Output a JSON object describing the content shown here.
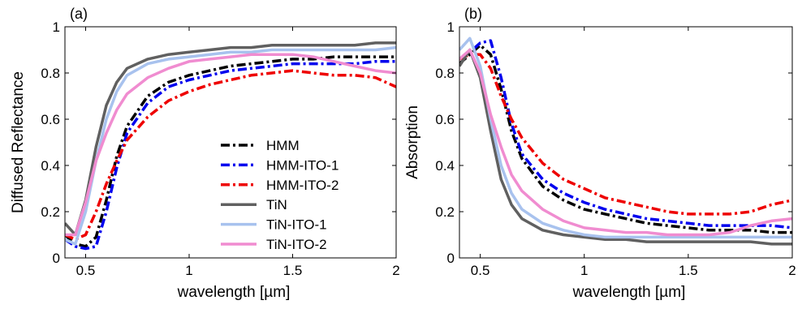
{
  "chart_data": [
    {
      "type": "line",
      "panel_label": "(a)",
      "xlabel": "wavelength [µm]",
      "ylabel": "Diffused Reflectance",
      "xlim": [
        0.4,
        2.0
      ],
      "ylim": [
        0,
        1
      ],
      "xticks": [
        0.5,
        1,
        1.5,
        2
      ],
      "xticklabels": [
        "0.5",
        "1",
        "1.5",
        "2"
      ],
      "yticks": [
        0,
        0.2,
        0.4,
        0.6,
        0.8,
        1
      ],
      "yticklabels": [
        "0",
        "0.2",
        "0.4",
        "0.6",
        "0.8",
        "1"
      ],
      "grid": false,
      "legend": "center-right",
      "series": [
        {
          "name": "HMM",
          "color": "#000000",
          "style": "dashdot",
          "x": [
            0.4,
            0.45,
            0.5,
            0.55,
            0.6,
            0.65,
            0.7,
            0.8,
            0.9,
            1.0,
            1.1,
            1.2,
            1.3,
            1.4,
            1.5,
            1.6,
            1.7,
            1.8,
            1.9,
            2.0
          ],
          "y": [
            0.1,
            0.06,
            0.05,
            0.09,
            0.25,
            0.44,
            0.57,
            0.7,
            0.76,
            0.79,
            0.81,
            0.83,
            0.84,
            0.85,
            0.86,
            0.86,
            0.87,
            0.87,
            0.87,
            0.87
          ]
        },
        {
          "name": "HMM-ITO-1",
          "color": "#0000ee",
          "style": "dashdot",
          "x": [
            0.4,
            0.45,
            0.5,
            0.55,
            0.6,
            0.65,
            0.7,
            0.8,
            0.9,
            1.0,
            1.1,
            1.2,
            1.3,
            1.4,
            1.5,
            1.6,
            1.7,
            1.8,
            1.9,
            2.0
          ],
          "y": [
            0.08,
            0.05,
            0.04,
            0.05,
            0.2,
            0.39,
            0.54,
            0.67,
            0.74,
            0.77,
            0.79,
            0.81,
            0.82,
            0.83,
            0.84,
            0.84,
            0.84,
            0.84,
            0.85,
            0.85
          ]
        },
        {
          "name": "HMM-ITO-2",
          "color": "#ee0000",
          "style": "dashdot",
          "x": [
            0.4,
            0.45,
            0.5,
            0.55,
            0.6,
            0.65,
            0.7,
            0.8,
            0.9,
            1.0,
            1.1,
            1.2,
            1.3,
            1.4,
            1.5,
            1.6,
            1.7,
            1.8,
            1.9,
            2.0
          ],
          "y": [
            0.1,
            0.08,
            0.1,
            0.2,
            0.32,
            0.42,
            0.51,
            0.61,
            0.68,
            0.72,
            0.75,
            0.77,
            0.79,
            0.8,
            0.81,
            0.8,
            0.79,
            0.79,
            0.78,
            0.74
          ]
        },
        {
          "name": "TiN",
          "color": "#606060",
          "style": "solid",
          "x": [
            0.4,
            0.45,
            0.5,
            0.55,
            0.6,
            0.65,
            0.7,
            0.8,
            0.9,
            1.0,
            1.1,
            1.2,
            1.3,
            1.4,
            1.5,
            1.6,
            1.7,
            1.8,
            1.9,
            2.0
          ],
          "y": [
            0.15,
            0.1,
            0.25,
            0.48,
            0.66,
            0.76,
            0.82,
            0.86,
            0.88,
            0.89,
            0.9,
            0.91,
            0.91,
            0.92,
            0.92,
            0.92,
            0.92,
            0.92,
            0.93,
            0.93
          ]
        },
        {
          "name": "TiN-ITO-1",
          "color": "#a8c2ee",
          "style": "solid",
          "x": [
            0.4,
            0.45,
            0.5,
            0.55,
            0.6,
            0.65,
            0.7,
            0.8,
            0.9,
            1.0,
            1.1,
            1.2,
            1.3,
            1.4,
            1.5,
            1.6,
            1.7,
            1.8,
            1.9,
            2.0
          ],
          "y": [
            0.08,
            0.06,
            0.2,
            0.42,
            0.6,
            0.72,
            0.79,
            0.84,
            0.86,
            0.87,
            0.88,
            0.89,
            0.89,
            0.9,
            0.9,
            0.9,
            0.9,
            0.9,
            0.9,
            0.91
          ]
        },
        {
          "name": "TiN-ITO-2",
          "color": "#f08cd0",
          "style": "solid",
          "x": [
            0.4,
            0.45,
            0.5,
            0.55,
            0.6,
            0.65,
            0.7,
            0.8,
            0.9,
            1.0,
            1.1,
            1.2,
            1.3,
            1.4,
            1.5,
            1.6,
            1.7,
            1.8,
            1.9,
            2.0
          ],
          "y": [
            0.1,
            0.1,
            0.24,
            0.42,
            0.54,
            0.64,
            0.71,
            0.78,
            0.82,
            0.85,
            0.86,
            0.87,
            0.88,
            0.88,
            0.88,
            0.87,
            0.85,
            0.83,
            0.81,
            0.8
          ]
        }
      ]
    },
    {
      "type": "line",
      "panel_label": "(b)",
      "xlabel": "wavelength [µm]",
      "ylabel": "Absorption",
      "xlim": [
        0.4,
        2.0
      ],
      "ylim": [
        0,
        1
      ],
      "xticks": [
        0.5,
        1,
        1.5,
        2
      ],
      "xticklabels": [
        "0.5",
        "1",
        "1.5",
        "2"
      ],
      "yticks": [
        0,
        0.2,
        0.4,
        0.6,
        0.8,
        1
      ],
      "yticklabels": [
        "0",
        "0.2",
        "0.4",
        "0.6",
        "0.8",
        "1"
      ],
      "grid": false,
      "legend": "none",
      "series": [
        {
          "name": "HMM",
          "color": "#000000",
          "style": "dashdot",
          "x": [
            0.4,
            0.45,
            0.5,
            0.55,
            0.6,
            0.65,
            0.7,
            0.8,
            0.9,
            1.0,
            1.1,
            1.2,
            1.3,
            1.4,
            1.5,
            1.6,
            1.7,
            1.8,
            1.9,
            2.0
          ],
          "y": [
            0.84,
            0.88,
            0.92,
            0.88,
            0.73,
            0.55,
            0.43,
            0.31,
            0.25,
            0.21,
            0.19,
            0.17,
            0.15,
            0.14,
            0.13,
            0.12,
            0.12,
            0.12,
            0.11,
            0.11
          ]
        },
        {
          "name": "HMM-ITO-1",
          "color": "#0000ee",
          "style": "dashdot",
          "x": [
            0.4,
            0.45,
            0.5,
            0.55,
            0.6,
            0.65,
            0.7,
            0.8,
            0.9,
            1.0,
            1.1,
            1.2,
            1.3,
            1.4,
            1.5,
            1.6,
            1.7,
            1.8,
            1.9,
            2.0
          ],
          "y": [
            0.86,
            0.89,
            0.93,
            0.94,
            0.78,
            0.58,
            0.45,
            0.34,
            0.28,
            0.24,
            0.21,
            0.19,
            0.17,
            0.16,
            0.15,
            0.14,
            0.14,
            0.14,
            0.14,
            0.13
          ]
        },
        {
          "name": "HMM-ITO-2",
          "color": "#ee0000",
          "style": "dashdot",
          "x": [
            0.4,
            0.45,
            0.5,
            0.55,
            0.6,
            0.65,
            0.7,
            0.8,
            0.9,
            1.0,
            1.1,
            1.2,
            1.3,
            1.4,
            1.5,
            1.6,
            1.7,
            1.8,
            1.9,
            2.0
          ],
          "y": [
            0.86,
            0.88,
            0.88,
            0.82,
            0.7,
            0.6,
            0.52,
            0.41,
            0.34,
            0.3,
            0.26,
            0.24,
            0.22,
            0.2,
            0.19,
            0.19,
            0.19,
            0.2,
            0.23,
            0.25
          ]
        },
        {
          "name": "TiN",
          "color": "#606060",
          "style": "solid",
          "x": [
            0.4,
            0.45,
            0.5,
            0.55,
            0.6,
            0.65,
            0.7,
            0.8,
            0.9,
            1.0,
            1.1,
            1.2,
            1.3,
            1.4,
            1.5,
            1.6,
            1.7,
            1.8,
            1.9,
            2.0
          ],
          "y": [
            0.83,
            0.9,
            0.78,
            0.55,
            0.34,
            0.23,
            0.17,
            0.12,
            0.1,
            0.09,
            0.08,
            0.08,
            0.07,
            0.07,
            0.07,
            0.07,
            0.07,
            0.07,
            0.06,
            0.06
          ]
        },
        {
          "name": "TiN-ITO-1",
          "color": "#a8c2ee",
          "style": "solid",
          "x": [
            0.4,
            0.45,
            0.5,
            0.55,
            0.6,
            0.65,
            0.7,
            0.8,
            0.9,
            1.0,
            1.1,
            1.2,
            1.3,
            1.4,
            1.5,
            1.6,
            1.7,
            1.8,
            1.9,
            2.0
          ],
          "y": [
            0.9,
            0.95,
            0.83,
            0.6,
            0.4,
            0.28,
            0.21,
            0.15,
            0.12,
            0.1,
            0.09,
            0.09,
            0.09,
            0.09,
            0.09,
            0.09,
            0.09,
            0.09,
            0.09,
            0.09
          ]
        },
        {
          "name": "TiN-ITO-2",
          "color": "#f08cd0",
          "style": "solid",
          "x": [
            0.4,
            0.45,
            0.5,
            0.55,
            0.6,
            0.65,
            0.7,
            0.8,
            0.9,
            1.0,
            1.1,
            1.2,
            1.3,
            1.4,
            1.5,
            1.6,
            1.7,
            1.8,
            1.9,
            2.0
          ],
          "y": [
            0.86,
            0.9,
            0.8,
            0.62,
            0.48,
            0.36,
            0.29,
            0.21,
            0.16,
            0.13,
            0.12,
            0.11,
            0.11,
            0.1,
            0.1,
            0.1,
            0.11,
            0.14,
            0.16,
            0.17
          ]
        }
      ]
    }
  ]
}
